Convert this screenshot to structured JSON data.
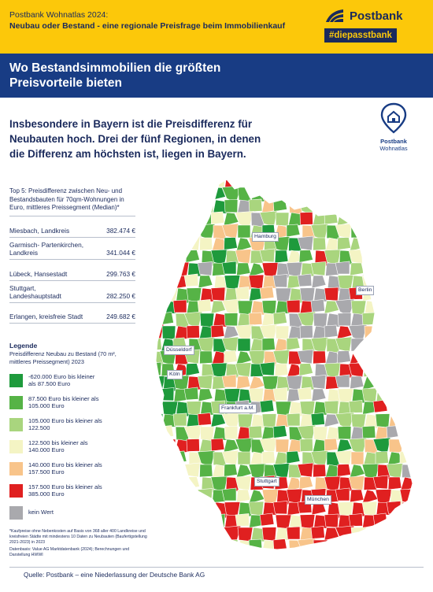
{
  "header": {
    "title_line1": "Postbank Wohnatlas 2024:",
    "title_line2": "Neubau oder Bestand - eine regionale Preisfrage beim Immobilienkauf",
    "brand_name": "Postbank",
    "brand_tag": "#diepasstbank"
  },
  "headline": "Wo Bestandsimmobilien die größten Preisvorteile bieten",
  "pin": {
    "line1": "Postbank",
    "line2": "Wohnatlas"
  },
  "intro": "Insbesondere in Bayern ist die Preisdifferenz für Neubauten hoch. Drei der fünf Regionen, in denen die Differenz am höchsten ist, liegen in Bayern.",
  "top5": {
    "heading": "Top 5: Preisdifferenz zwischen Neu- und Bestandsbauten für 70qm-Wohnungen in Euro, mittleres Preissegment (Median)*",
    "rows": [
      {
        "region": "Miesbach, Landkreis",
        "value": "382.474 €"
      },
      {
        "region": "Garmisch- Partenkirchen, Landkreis",
        "value": "341.044 €"
      },
      {
        "region": "Lübeck, Hansestadt",
        "value": "299.763 €"
      },
      {
        "region": "Stuttgart, Landeshauptstadt",
        "value": "282.250 €"
      },
      {
        "region": "Erlangen, kreisfreie Stadt",
        "value": "249.682 €"
      }
    ]
  },
  "legend": {
    "title": "Legende",
    "subtitle": "Preisdifferenz Neubau zu Bestand (70 m², mittleres Preissegment) 2023",
    "items": [
      {
        "label": "-620.000 Euro bis kleiner als 87.500 Euro",
        "color": "#1e9a3c"
      },
      {
        "label": "87.500 Euro bis kleiner als 105.000 Euro",
        "color": "#56b346"
      },
      {
        "label": "105.000 Euro bis kleiner als 122.500",
        "color": "#a9d57e"
      },
      {
        "label": "122.500 bis kleiner als 140.000 Euro",
        "color": "#f4f4c4"
      },
      {
        "label": "140.000 Euro bis kleiner als 157.500 Euro",
        "color": "#f8c48a"
      },
      {
        "label": "157.500 Euro bis kleiner als 385.000 Euro",
        "color": "#e02020"
      },
      {
        "label": "kein Wert",
        "color": "#a9a9ad"
      }
    ]
  },
  "footnote": {
    "text1": "*Kaufpreise ohne Nebenkosten auf Basis von 368 aller 400 Landkreise und kreisfreien Städte mit mindestens 10 Daten zu Neubauten (Baufertigstellung 2021-2023) in 2023",
    "text2": "Datenbasis: Value AG Marktdatenbank (2024); Berechnungen und Darstellung HWWI"
  },
  "source": "Quelle: Postbank – eine Niederlassung der Deutsche Bank AG",
  "cities": [
    {
      "name": "Hamburg"
    },
    {
      "name": "Berlin"
    },
    {
      "name": "Düsseldorf"
    },
    {
      "name": "Köln"
    },
    {
      "name": "Frankfurt a.M."
    },
    {
      "name": "Stuttgart"
    },
    {
      "name": "München"
    }
  ]
}
